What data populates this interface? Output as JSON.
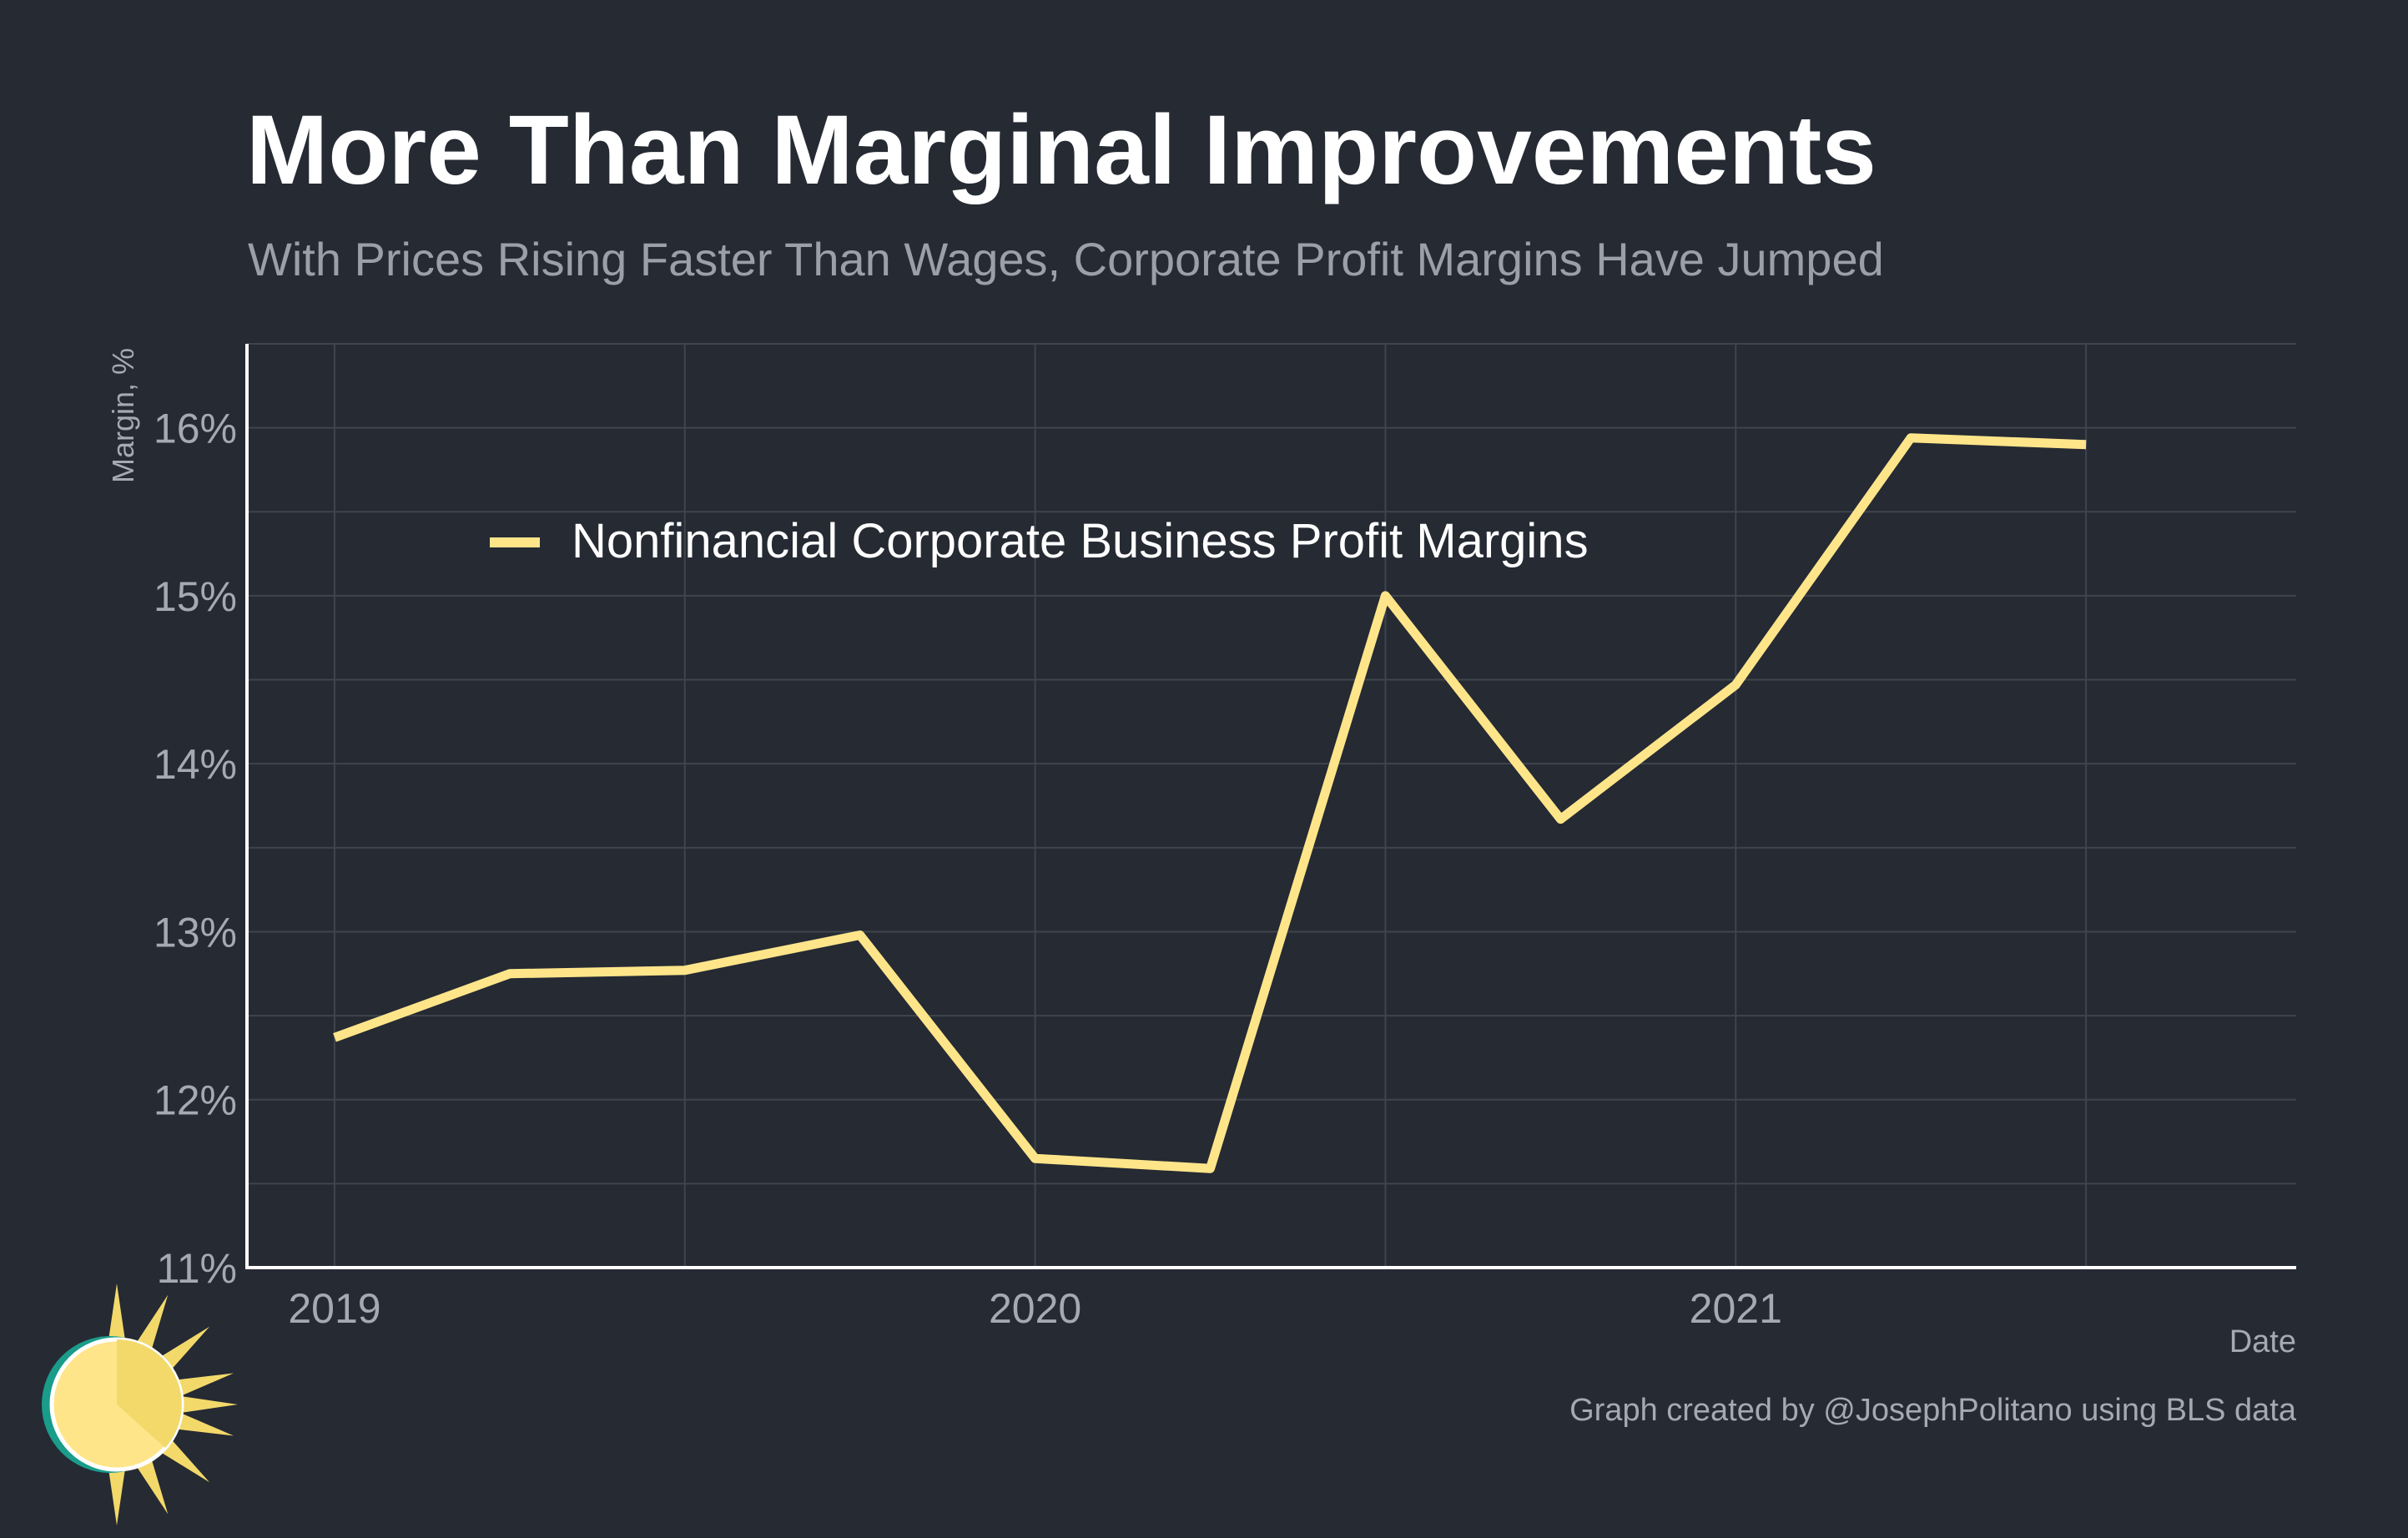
{
  "title": "More Than Marginal Improvements",
  "subtitle": "With Prices Rising Faster Than Wages, Corporate Profit Margins Have Jumped",
  "caption": "Graph created by @JosephPolitano using BLS data",
  "logo_icon": "sun-logo-icon",
  "colors": {
    "background": "#252a33",
    "grid": "#3f444d",
    "axis": "#ffffff",
    "line": "#ffe58a",
    "logo_ring": "#1a9c8a",
    "logo_sun": "#ffe58a",
    "logo_ray": "#f3d96a"
  },
  "chart_data": {
    "type": "line",
    "xlabel": "Date",
    "ylabel": "Margin, %",
    "x_ticks": [
      "2019",
      "2020",
      "2021"
    ],
    "y_ticks": [
      "11%",
      "12%",
      "13%",
      "14%",
      "15%",
      "16%"
    ],
    "ylim": [
      11,
      16.5
    ],
    "xlim": [
      "2018-10",
      "2021-10"
    ],
    "legend_position": "top-left inside plot",
    "grid": true,
    "series": [
      {
        "name": "Nonfinancial Corporate Business Profit Margins",
        "x": [
          "2019 Q1",
          "2019 Q2",
          "2019 Q3",
          "2019 Q4",
          "2020 Q1",
          "2020 Q2",
          "2020 Q3",
          "2020 Q4",
          "2021 Q1",
          "2021 Q2",
          "2021 Q3"
        ],
        "values": [
          12.37,
          12.75,
          12.77,
          12.98,
          11.65,
          11.59,
          15.0,
          13.67,
          14.47,
          15.94,
          15.9
        ]
      }
    ]
  }
}
